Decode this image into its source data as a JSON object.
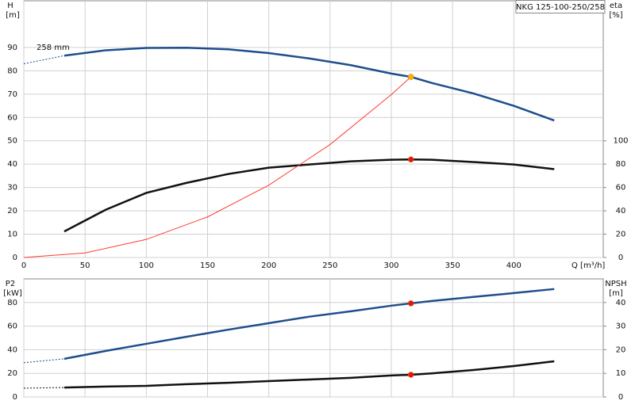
{
  "chart_data": [
    {
      "type": "line",
      "title": "NKG 125-100-250/258",
      "ylabel": "H",
      "yunit": "[m]",
      "y2label": "eta",
      "y2unit": "[%]",
      "xlabel": "Q [m³/h]",
      "annotation": "258 mm",
      "xlim": [
        0,
        473
      ],
      "xticks": [
        0,
        50,
        100,
        150,
        200,
        250,
        300,
        350,
        400
      ],
      "ylim": [
        0,
        110
      ],
      "yticks": [
        0,
        10,
        20,
        30,
        40,
        50,
        60,
        70,
        80,
        90
      ],
      "y2lim": [
        0,
        220
      ],
      "y2ticks": [
        0,
        20,
        40,
        60,
        80,
        100
      ],
      "grid": true,
      "show_xtick_labels": true,
      "x": [
        0,
        33,
        67,
        100,
        133,
        167,
        200,
        233,
        267,
        300,
        316,
        333,
        367,
        400,
        433
      ],
      "series": [
        {
          "color": "#1f4e8c",
          "dash": true,
          "width": 1,
          "values": [
            83,
            86.5,
            null,
            null,
            null,
            null,
            null,
            null,
            null,
            null,
            null,
            null,
            null,
            null,
            null
          ]
        },
        {
          "color": "#1f4e8c",
          "width": 2.5,
          "values": [
            null,
            86.5,
            88.8,
            89.8,
            89.9,
            89.2,
            87.6,
            85.3,
            82.4,
            78.8,
            77.4,
            74.8,
            70.3,
            65,
            58.7
          ]
        },
        {
          "color": "#111111",
          "width": 2.5,
          "axis": "y2",
          "values": [
            null,
            22.3,
            41,
            55.4,
            64,
            71.6,
            77,
            79.7,
            82.4,
            83.8,
            84,
            83.8,
            81.8,
            79.7,
            75.7
          ]
        },
        {
          "color": "#ff3b30",
          "width": 1,
          "x": [
            0,
            50,
            100,
            150,
            200,
            250,
            300,
            316
          ],
          "values": [
            0,
            1.94,
            7.75,
            17.4,
            31,
            48.4,
            69.8,
            77.4
          ]
        },
        {
          "color": "#f7b500",
          "marker": true,
          "x": [
            316
          ],
          "values": [
            77.4
          ]
        },
        {
          "color": "#ee1111",
          "marker": true,
          "axis": "y2",
          "x": [
            316
          ],
          "values": [
            84
          ]
        }
      ]
    },
    {
      "type": "line",
      "ylabel": "P2",
      "yunit": "[kW]",
      "y2label": "NPSH",
      "y2unit": "[m]",
      "xlim": [
        0,
        473
      ],
      "xticks": [
        0,
        50,
        100,
        150,
        200,
        250,
        300,
        350,
        400
      ],
      "ylim": [
        0,
        100
      ],
      "yticks": [
        0,
        20,
        40,
        60,
        80
      ],
      "y2lim": [
        0,
        50
      ],
      "y2ticks": [
        0,
        10,
        20,
        30,
        40
      ],
      "grid": true,
      "show_xtick_labels": false,
      "x": [
        0,
        33,
        67,
        100,
        133,
        167,
        200,
        233,
        267,
        300,
        316,
        333,
        367,
        400,
        433
      ],
      "series": [
        {
          "color": "#1f4e8c",
          "dash": true,
          "width": 1,
          "values": [
            29,
            32.3,
            null,
            null,
            null,
            null,
            null,
            null,
            null,
            null,
            null,
            null,
            null,
            null,
            null
          ]
        },
        {
          "color": "#1f4e8c",
          "width": 2.5,
          "values": [
            null,
            32.3,
            39,
            45,
            51,
            57,
            62.5,
            68,
            72.6,
            77.3,
            79.3,
            81.3,
            84.7,
            88,
            91.4
          ]
        },
        {
          "color": "#111111",
          "dash": true,
          "width": 1,
          "axis": "y2",
          "values": [
            3.7,
            4,
            null,
            null,
            null,
            null,
            null,
            null,
            null,
            null,
            null,
            null,
            null,
            null,
            null
          ]
        },
        {
          "color": "#111111",
          "width": 2.5,
          "axis": "y2",
          "values": [
            null,
            4,
            4.4,
            4.7,
            5.4,
            6,
            6.7,
            7.4,
            8.1,
            9.1,
            9.4,
            10,
            11.4,
            13.1,
            15.1
          ]
        },
        {
          "color": "#ee1111",
          "marker": true,
          "x": [
            316
          ],
          "values": [
            79.3
          ]
        },
        {
          "color": "#ee1111",
          "marker": true,
          "axis": "y2",
          "x": [
            316
          ],
          "values": [
            9.4
          ]
        }
      ]
    }
  ]
}
